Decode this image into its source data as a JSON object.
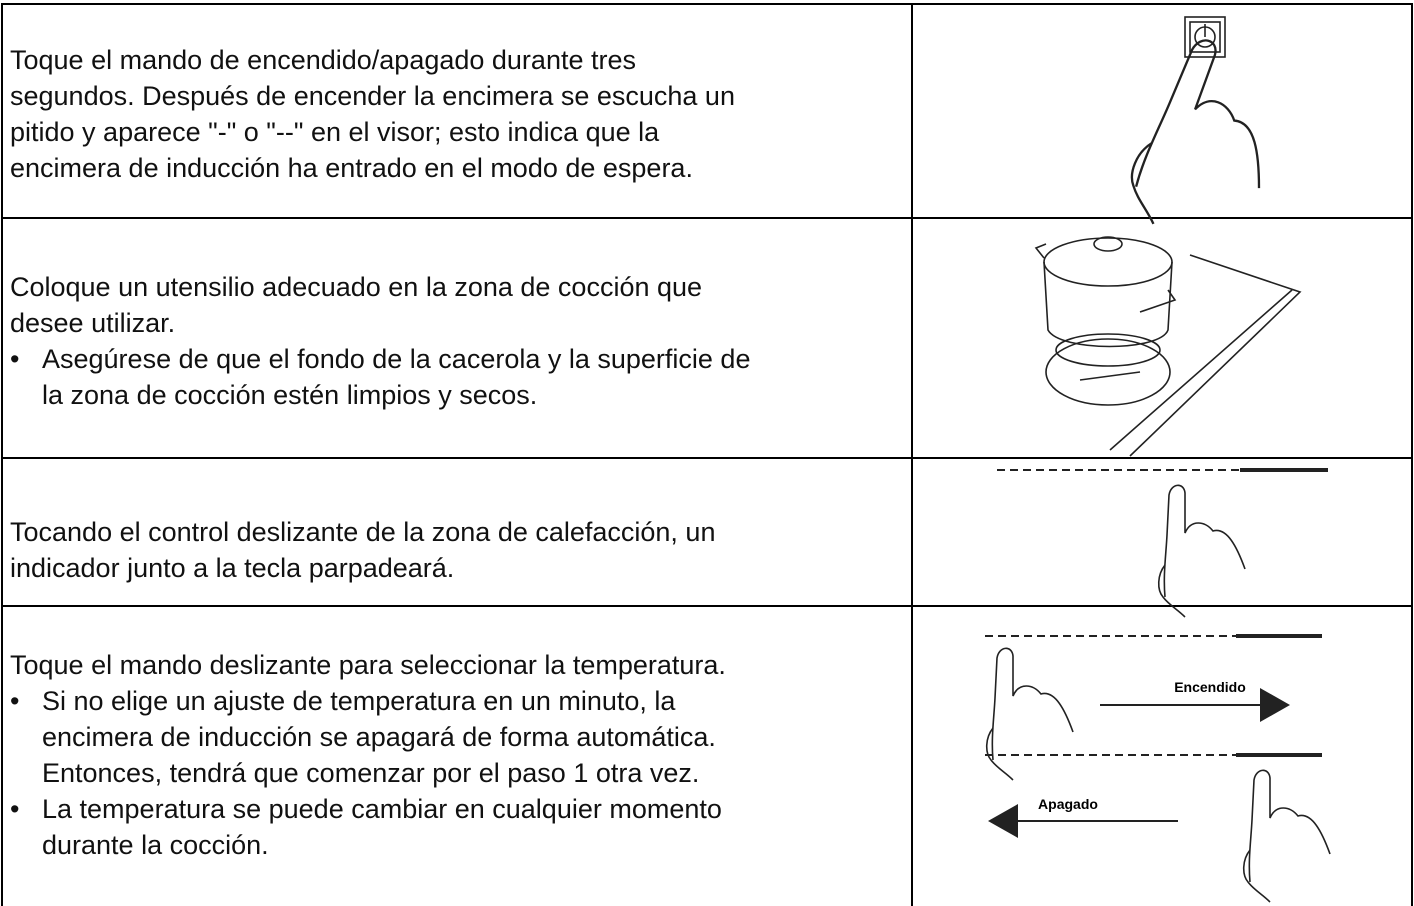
{
  "table": {
    "rows": [
      {
        "paragraph": [
          "Toque el mando de encendido/apagado durante tres",
          "segundos. Después de encender la encimera se escucha un",
          "pitido y aparece \"-\" o \"--\" en el visor; esto indica que la",
          "encimera de inducción ha entrado en el modo de espera."
        ],
        "bullets": []
      },
      {
        "paragraph": [
          "Coloque un utensilio adecuado en la zona de cocción que",
          "desee utilizar."
        ],
        "bullets": [
          [
            "Asegúrese de que el fondo de la cacerola y la superficie de",
            "la zona de cocción estén limpios y secos."
          ]
        ]
      },
      {
        "paragraph": [
          "Tocando el control deslizante de la zona de calefacción, un",
          "indicador junto a la tecla parpadeará."
        ],
        "bullets": []
      },
      {
        "paragraph": [
          "Toque el mando deslizante para seleccionar la temperatura."
        ],
        "bullets": [
          [
            "Si no elige un ajuste de temperatura en un minuto, la",
            "encimera de inducción se apagará de forma automática.",
            "Entonces, tendrá que comenzar por el paso 1 otra vez."
          ],
          [
            "La temperatura se puede cambiar en cualquier momento",
            "durante la cocción."
          ]
        ],
        "labels": [
          "Encendido",
          "Apagado"
        ]
      }
    ]
  }
}
